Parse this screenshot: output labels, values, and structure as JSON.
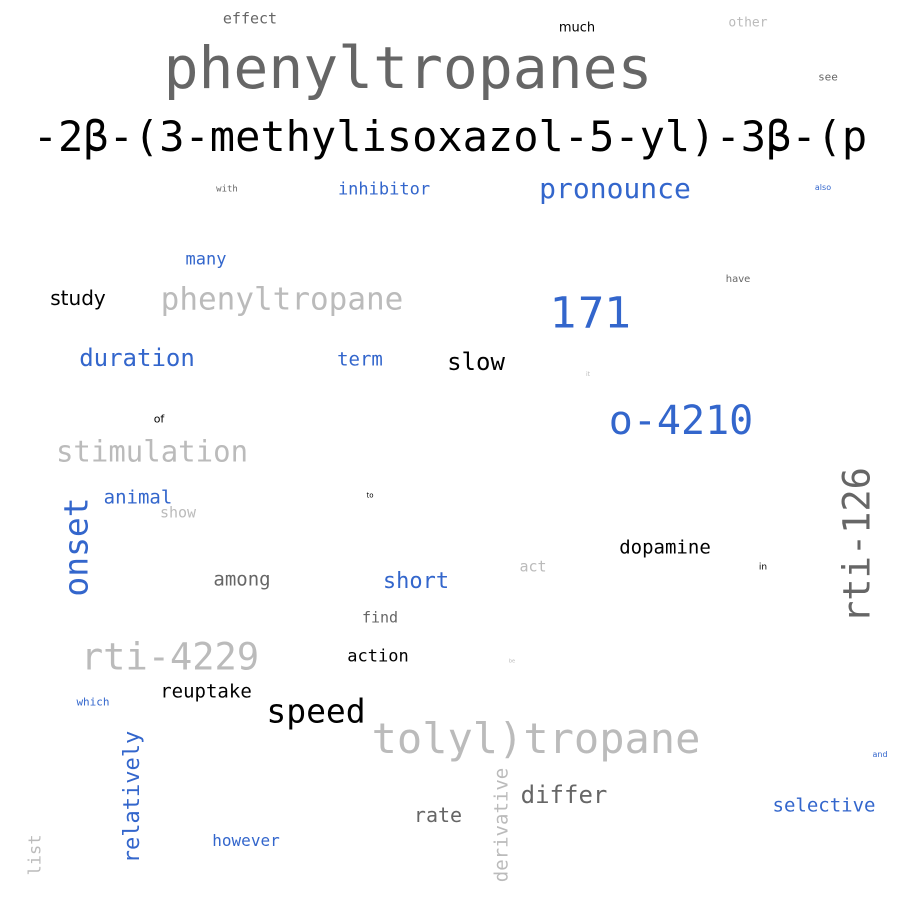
{
  "colors": {
    "background": "#ffffff",
    "dark_gray": "#666666",
    "light_gray": "#bbbbbb",
    "black": "#000000",
    "blue": "#3366cc"
  },
  "words": [
    {
      "text": "effect",
      "color": "#666666"
    },
    {
      "text": "much",
      "color": "#000000"
    },
    {
      "text": "other",
      "color": "#bbbbbb"
    },
    {
      "text": "phenyltropanes",
      "color": "#666666"
    },
    {
      "text": "see",
      "color": "#666666"
    },
    {
      "text": "-2β-(3-methylisoxazol-5-yl)-3β-(p",
      "color": "#000000"
    },
    {
      "text": "with",
      "color": "#666666"
    },
    {
      "text": "inhibitor",
      "color": "#3366cc"
    },
    {
      "text": "pronounce",
      "color": "#3366cc"
    },
    {
      "text": "also",
      "color": "#3366cc"
    },
    {
      "text": "many",
      "color": "#3366cc"
    },
    {
      "text": "have",
      "color": "#666666"
    },
    {
      "text": "study",
      "color": "#000000"
    },
    {
      "text": "phenyltropane",
      "color": "#bbbbbb"
    },
    {
      "text": "171",
      "color": "#3366cc"
    },
    {
      "text": "duration",
      "color": "#3366cc"
    },
    {
      "text": "term",
      "color": "#3366cc"
    },
    {
      "text": "slow",
      "color": "#000000"
    },
    {
      "text": "it",
      "color": "#bbbbbb"
    },
    {
      "text": "o-4210",
      "color": "#3366cc"
    },
    {
      "text": "of",
      "color": "#000000"
    },
    {
      "text": "stimulation",
      "color": "#bbbbbb"
    },
    {
      "text": "rti-126",
      "color": "#666666"
    },
    {
      "text": "onset",
      "color": "#3366cc"
    },
    {
      "text": "animal",
      "color": "#3366cc"
    },
    {
      "text": "to",
      "color": "#000000"
    },
    {
      "text": "show",
      "color": "#bbbbbb"
    },
    {
      "text": "dopamine",
      "color": "#000000"
    },
    {
      "text": "among",
      "color": "#666666"
    },
    {
      "text": "short",
      "color": "#3366cc"
    },
    {
      "text": "act",
      "color": "#bbbbbb"
    },
    {
      "text": "in",
      "color": "#000000"
    },
    {
      "text": "find",
      "color": "#666666"
    },
    {
      "text": "rti-4229",
      "color": "#bbbbbb"
    },
    {
      "text": "action",
      "color": "#000000"
    },
    {
      "text": "be",
      "color": "#bbbbbb"
    },
    {
      "text": "which",
      "color": "#3366cc"
    },
    {
      "text": "reuptake",
      "color": "#000000"
    },
    {
      "text": "speed",
      "color": "#000000"
    },
    {
      "text": "tolyl)tropane",
      "color": "#bbbbbb"
    },
    {
      "text": "and",
      "color": "#3366cc"
    },
    {
      "text": "relatively",
      "color": "#3366cc"
    },
    {
      "text": "derivative",
      "color": "#bbbbbb"
    },
    {
      "text": "differ",
      "color": "#666666"
    },
    {
      "text": "selective",
      "color": "#3366cc"
    },
    {
      "text": "rate",
      "color": "#666666"
    },
    {
      "text": "however",
      "color": "#3366cc"
    },
    {
      "text": "list",
      "color": "#bbbbbb"
    }
  ]
}
